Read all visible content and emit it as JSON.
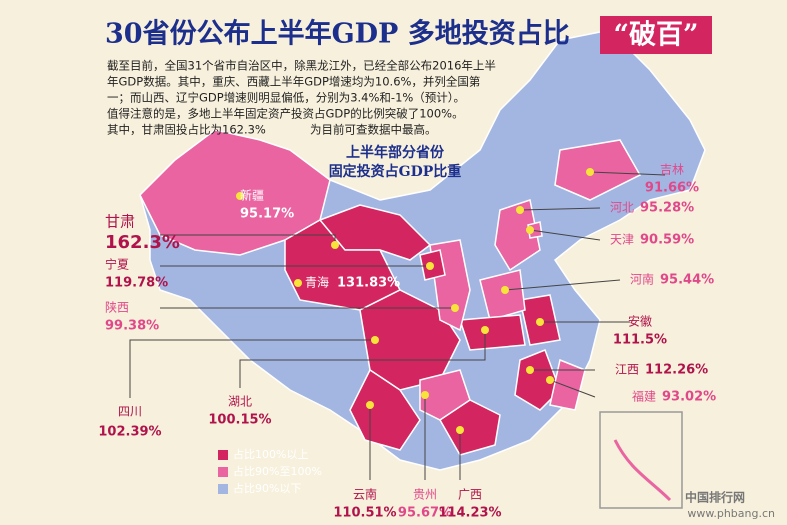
{
  "header": {
    "title": "30省份公布上半年GDP 多地投资占比",
    "highlight": "“破百”"
  },
  "intro": {
    "lines": [
      "截至目前，全国31个省市自治区中，除黑龙江外，已经全部公布2016年上半",
      "年GDP数据。其中，重庆、西藏上半年GDP增速均为10.6%，并列全国第",
      "一；而山西、辽宁GDP增速则明显偏低，分别为3.4%和-1%（预计）。",
      "值得注意的是，多地上半年固定资产投资占GDP的比例突破了100%。",
      "其中，甘肃固投占比为162.3%",
      "为目前可查数据中最高。"
    ]
  },
  "map": {
    "subtitle": [
      "上半年部分省份",
      "固定投资占GDP比重"
    ],
    "provinces": [
      {
        "name": "新疆",
        "value": "95.17%"
      },
      {
        "name": "甘肃",
        "value": "162.3%"
      },
      {
        "name": "宁夏",
        "value": "119.78%"
      },
      {
        "name": "陕西",
        "value": "99.38%"
      },
      {
        "name": "四川",
        "value": "102.39%"
      },
      {
        "name": "湖北",
        "value": "100.15%"
      },
      {
        "name": "云南",
        "value": "110.51%"
      },
      {
        "name": "贵州",
        "value": "95.67%"
      },
      {
        "name": "广西",
        "value": "114.23%"
      },
      {
        "name": "福建",
        "value": "93.02%"
      },
      {
        "name": "江西",
        "value": "112.26%"
      },
      {
        "name": "安徽",
        "value": "111.5%"
      },
      {
        "name": "河南",
        "value": "95.44%"
      },
      {
        "name": "天津",
        "value": "90.59%"
      },
      {
        "name": "河北",
        "value": "95.28%"
      },
      {
        "name": "吉林",
        "value": "91.66%"
      },
      {
        "name": "青海",
        "value": "131.83%"
      }
    ],
    "legend": [
      {
        "label": "占比100%以上",
        "color": "#d3255f"
      },
      {
        "label": "占比90%至100%",
        "color": "#e964a0"
      },
      {
        "label": "占比90%以下",
        "color": "#a3b6e2"
      }
    ]
  },
  "footer": {
    "site": "中国排行网",
    "url": "www.phbang.cn"
  }
}
